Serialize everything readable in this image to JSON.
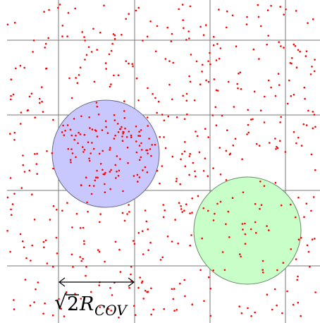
{
  "diagram": {
    "colors": {
      "background": "#ffffff",
      "grid_line": "#7a7a7a",
      "point": "#ff0000",
      "blue_circle_fill": "#c8c8ff",
      "blue_circle_stroke": "#6a6a8a",
      "green_circle_fill": "#c8ffc8",
      "green_circle_stroke": "#6a8a6a",
      "arrow": "#000000"
    },
    "label": {
      "sqrt": "√",
      "number": "2",
      "r": "R",
      "subscript": "COV"
    }
  }
}
